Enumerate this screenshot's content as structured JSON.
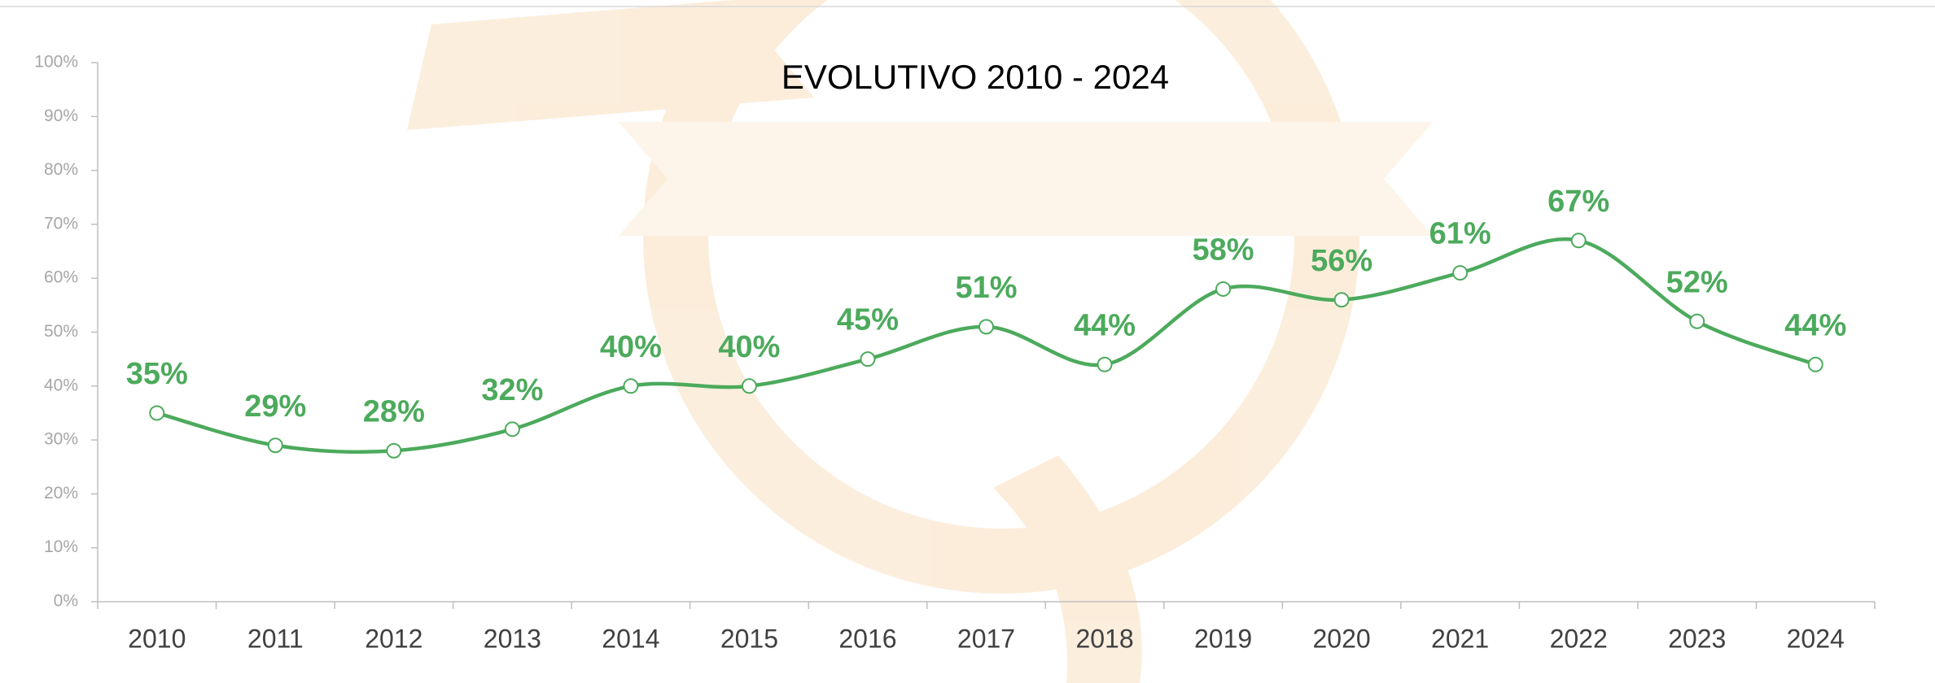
{
  "chart_data": {
    "type": "line",
    "title": "EVOLUTIVO 2010 - 2024",
    "categories": [
      "2010",
      "2011",
      "2012",
      "2013",
      "2014",
      "2015",
      "2016",
      "2017",
      "2018",
      "2019",
      "2020",
      "2021",
      "2022",
      "2023",
      "2024"
    ],
    "values": [
      35,
      29,
      28,
      32,
      40,
      40,
      45,
      51,
      44,
      58,
      56,
      61,
      67,
      52,
      44
    ],
    "value_labels": [
      "35%",
      "29%",
      "28%",
      "32%",
      "40%",
      "40%",
      "45%",
      "51%",
      "44%",
      "58%",
      "56%",
      "61%",
      "67%",
      "52%",
      "44%"
    ],
    "color": "#4caa5c",
    "ylim": [
      0,
      100
    ],
    "yticks": [
      {
        "value": 0,
        "label": "0%"
      },
      {
        "value": 10,
        "label": "10%"
      },
      {
        "value": 20,
        "label": "20%"
      },
      {
        "value": 30,
        "label": "30%"
      },
      {
        "value": 40,
        "label": "40%"
      },
      {
        "value": 50,
        "label": "50%"
      },
      {
        "value": 60,
        "label": "60%"
      },
      {
        "value": 70,
        "label": "70%"
      },
      {
        "value": 80,
        "label": "80%"
      },
      {
        "value": 90,
        "label": "90%"
      },
      {
        "value": 100,
        "label": "100%"
      }
    ],
    "grid": false
  }
}
